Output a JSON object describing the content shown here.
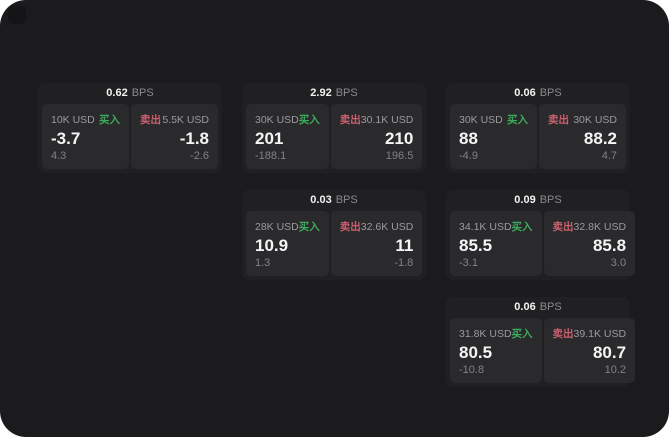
{
  "app": {
    "background": "#1b1b1d",
    "card_background": "#202022",
    "panel_background": "#2a2a2c",
    "accent_green": "#3dab5c",
    "accent_red": "#cb5f6e"
  },
  "cards": [
    {
      "bps_value": "0.62",
      "bps_unit": "BPS",
      "buy": {
        "notional": "10K USD",
        "side_label": "买入",
        "price": "-3.7",
        "change": "4.3"
      },
      "sell": {
        "notional": "5.5K USD",
        "side_label": "卖出",
        "price": "-1.8",
        "change": "-2.6"
      }
    },
    {
      "bps_value": "2.92",
      "bps_unit": "BPS",
      "buy": {
        "notional": "30K USD",
        "side_label": "买入",
        "price": "201",
        "change": "-188.1"
      },
      "sell": {
        "notional": "30.1K USD",
        "side_label": "卖出",
        "price": "210",
        "change": "196.5"
      }
    },
    {
      "bps_value": "0.06",
      "bps_unit": "BPS",
      "buy": {
        "notional": "30K USD",
        "side_label": "买入",
        "price": "88",
        "change": "-4.9"
      },
      "sell": {
        "notional": "30K USD",
        "side_label": "卖出",
        "price": "88.2",
        "change": "4.7"
      }
    },
    {
      "bps_value": "0.03",
      "bps_unit": "BPS",
      "buy": {
        "notional": "28K USD",
        "side_label": "买入",
        "price": "10.9",
        "change": "1.3"
      },
      "sell": {
        "notional": "32.6K USD",
        "side_label": "卖出",
        "price": "11",
        "change": "-1.8"
      }
    },
    {
      "bps_value": "0.09",
      "bps_unit": "BPS",
      "buy": {
        "notional": "34.1K USD",
        "side_label": "买入",
        "price": "85.5",
        "change": "-3.1"
      },
      "sell": {
        "notional": "32.8K USD",
        "side_label": "卖出",
        "price": "85.8",
        "change": "3.0"
      }
    },
    {
      "bps_value": "0.06",
      "bps_unit": "BPS",
      "buy": {
        "notional": "31.8K USD",
        "side_label": "买入",
        "price": "80.5",
        "change": "-10.8"
      },
      "sell": {
        "notional": "39.1K USD",
        "side_label": "卖出",
        "price": "80.7",
        "change": "10.2"
      }
    }
  ]
}
